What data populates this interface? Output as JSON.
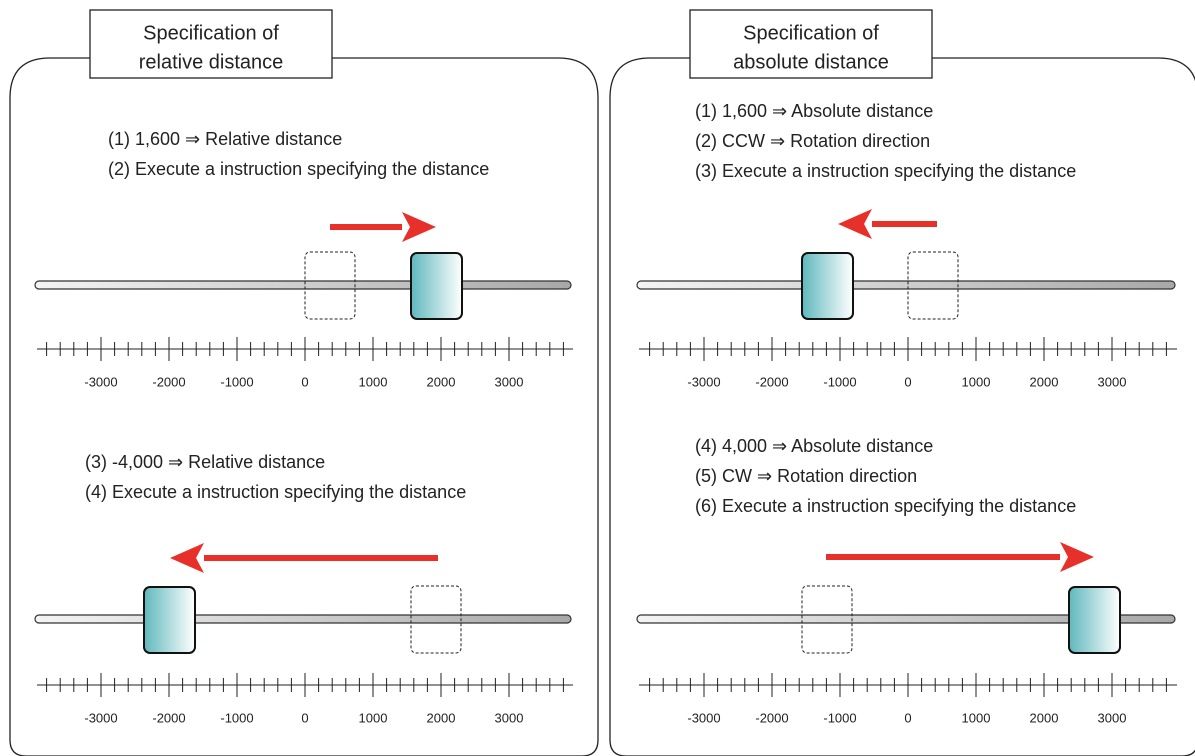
{
  "panels": [
    {
      "title": [
        "Specification of",
        "relative distance"
      ],
      "steps_top": [
        "(1) 1,600 ⇒ Relative distance",
        "(2) Execute a instruction specifying the distance"
      ],
      "steps_bottom": [
        "(3) -4,000 ⇒ Relative distance",
        "(4) Execute a instruction specifying the distance"
      ]
    },
    {
      "title": [
        "Specification of",
        "absolute distance"
      ],
      "steps_top": [
        "(1) 1,600 ⇒ Absolute distance",
        "(2) CCW ⇒ Rotation direction",
        "(3) Execute a instruction specifying the distance"
      ],
      "steps_bottom": [
        "(4) 4,000 ⇒ Absolute distance",
        "(5) CW ⇒ Rotation direction",
        "(6) Execute a instruction specifying the distance"
      ]
    }
  ],
  "axis_labels": [
    "-3000",
    "-2000",
    "-1000",
    "0",
    "1000",
    "2000",
    "3000"
  ]
}
